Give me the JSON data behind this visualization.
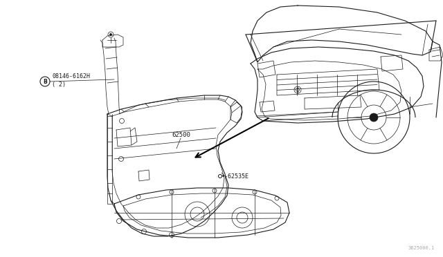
{
  "background_color": "#ffffff",
  "fig_width": 6.4,
  "fig_height": 3.72,
  "dpi": 100,
  "watermark": "3625000.1",
  "label_b_circle": "B",
  "label_b_part": "08146-6162H",
  "label_b_sub": "( 2)",
  "label_62500": "62500",
  "label_62535e": "•-62535E",
  "line_color": "#1a1a1a",
  "arrow_color": "#000000"
}
